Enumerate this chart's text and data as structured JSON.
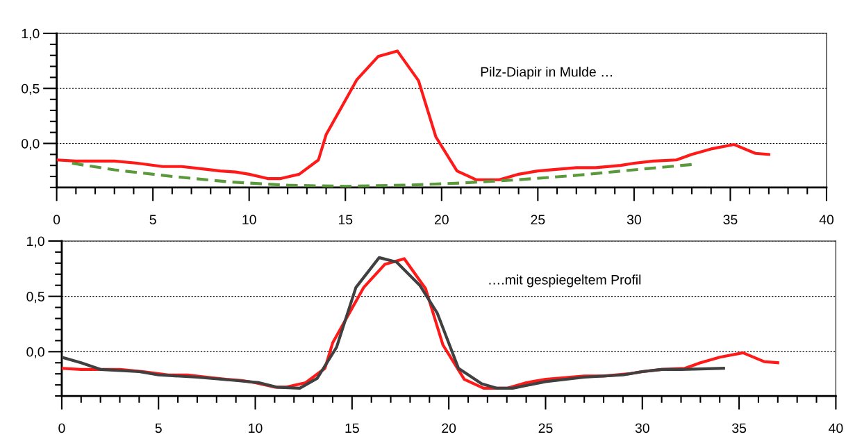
{
  "chart_data": [
    {
      "type": "line",
      "annotations": [
        "Pilz-Diapir in Mulde …"
      ],
      "xlim": [
        0,
        40
      ],
      "xticks": [
        0,
        5,
        10,
        15,
        20,
        25,
        30,
        35,
        40
      ],
      "ylim": [
        -0.4,
        1.0
      ],
      "yticks": [
        {
          "value": 0.0,
          "label": "0,0"
        },
        {
          "value": 0.5,
          "label": "0,5"
        },
        {
          "value": 1.0,
          "label": "1,0"
        }
      ],
      "grid": "y",
      "legend": false,
      "series": [
        {
          "color": "#ff1a1a",
          "line_style": "solid",
          "x": [
            0,
            1,
            3,
            4.2,
            5.5,
            6.5,
            7.5,
            8.5,
            9.3,
            10,
            11,
            11.6,
            12.6,
            13.6,
            14,
            14.8,
            15.6,
            16.7,
            17.7,
            18.8,
            19.7,
            20.8,
            21.8,
            23,
            24,
            25,
            27,
            28,
            29.3,
            30,
            31,
            32.2,
            33,
            34,
            35.2,
            36.3,
            37
          ],
          "values": [
            -0.15,
            -0.16,
            -0.16,
            -0.18,
            -0.21,
            -0.21,
            -0.23,
            -0.25,
            -0.26,
            -0.28,
            -0.32,
            -0.32,
            -0.28,
            -0.15,
            0.08,
            0.33,
            0.58,
            0.79,
            0.84,
            0.57,
            0.06,
            -0.25,
            -0.33,
            -0.33,
            -0.28,
            -0.25,
            -0.22,
            -0.22,
            -0.2,
            -0.18,
            -0.16,
            -0.15,
            -0.1,
            -0.05,
            -0.01,
            -0.09,
            -0.1
          ]
        },
        {
          "color": "#5b9a3c",
          "line_style": "dashed",
          "x": [
            0.8,
            3,
            6,
            9,
            12,
            15,
            18,
            21,
            24,
            27,
            30,
            33.1
          ],
          "values": [
            -0.18,
            -0.24,
            -0.3,
            -0.35,
            -0.38,
            -0.39,
            -0.38,
            -0.36,
            -0.33,
            -0.29,
            -0.24,
            -0.19
          ]
        }
      ]
    },
    {
      "type": "line",
      "annotations": [
        "….mit gespiegeltem Profil"
      ],
      "xlim": [
        0,
        40
      ],
      "xticks": [
        0,
        5,
        10,
        15,
        20,
        25,
        30,
        35,
        40
      ],
      "ylim": [
        -0.4,
        1.0
      ],
      "yticks": [
        {
          "value": 0.0,
          "label": "0,0"
        },
        {
          "value": 0.5,
          "label": "0,5"
        },
        {
          "value": 1.0,
          "label": "1,0"
        }
      ],
      "grid": "y",
      "legend": false,
      "series": [
        {
          "color": "#ff1a1a",
          "line_style": "solid",
          "x": [
            0,
            1,
            3,
            4.2,
            5.5,
            6.5,
            7.5,
            8.5,
            9.3,
            10,
            11,
            11.6,
            12.6,
            13.6,
            14,
            14.8,
            15.6,
            16.7,
            17.7,
            18.8,
            19.7,
            20.8,
            21.8,
            23,
            24,
            25,
            27,
            28,
            29.3,
            30,
            31,
            32.2,
            33,
            34,
            35.2,
            36.3,
            37
          ],
          "values": [
            -0.15,
            -0.16,
            -0.16,
            -0.18,
            -0.21,
            -0.21,
            -0.23,
            -0.25,
            -0.26,
            -0.28,
            -0.32,
            -0.32,
            -0.28,
            -0.15,
            0.08,
            0.33,
            0.58,
            0.79,
            0.84,
            0.57,
            0.06,
            -0.25,
            -0.33,
            -0.33,
            -0.28,
            -0.25,
            -0.22,
            -0.22,
            -0.2,
            -0.18,
            -0.16,
            -0.15,
            -0.1,
            -0.05,
            -0.01,
            -0.09,
            -0.1
          ]
        },
        {
          "color": "#404040",
          "line_style": "solid",
          "x": [
            0,
            1,
            2,
            4,
            5,
            7,
            9,
            10.2,
            11.1,
            12.3,
            13.2,
            14.2,
            15.2,
            16.4,
            17.3,
            18.5,
            19.4,
            20.5,
            21.7,
            22.5,
            23.3,
            25,
            27,
            29,
            30,
            31,
            32,
            34.2
          ],
          "values": [
            -0.05,
            -0.1,
            -0.16,
            -0.18,
            -0.21,
            -0.23,
            -0.26,
            -0.28,
            -0.32,
            -0.33,
            -0.24,
            0.04,
            0.58,
            0.85,
            0.81,
            0.6,
            0.35,
            -0.15,
            -0.29,
            -0.33,
            -0.33,
            -0.27,
            -0.23,
            -0.21,
            -0.18,
            -0.16,
            -0.16,
            -0.15
          ]
        }
      ]
    }
  ]
}
